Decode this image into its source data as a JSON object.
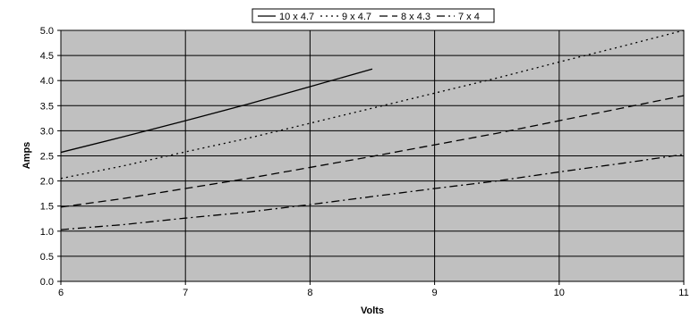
{
  "chart_data": {
    "type": "line",
    "xlabel": "Volts",
    "ylabel": "Amps",
    "xlim": [
      6,
      11
    ],
    "ylim": [
      0,
      5
    ],
    "x_ticks": [
      "6",
      "7",
      "8",
      "9",
      "10",
      "11"
    ],
    "y_ticks": [
      "0.0",
      "0.5",
      "1.0",
      "1.5",
      "2.0",
      "2.5",
      "3.0",
      "3.5",
      "4.0",
      "4.5",
      "5.0"
    ],
    "grid": "vertical and horizontal",
    "legend_position": "top",
    "colors": {
      "plot_background": "#c0c0c0",
      "line": "#000000",
      "grid": "#000000"
    },
    "series": [
      {
        "name": "10 x 4.7",
        "dash": "solid",
        "x": [
          6,
          6.5,
          7,
          7.5,
          8,
          8.5
        ],
        "y": [
          2.57,
          2.88,
          3.2,
          3.53,
          3.88,
          4.23
        ]
      },
      {
        "name": "9 x 4.7",
        "dash": "dotted",
        "x": [
          6,
          6.5,
          7,
          7.5,
          8,
          8.5,
          9,
          9.5,
          10,
          10.5,
          11
        ],
        "y": [
          2.05,
          2.3,
          2.58,
          2.85,
          3.15,
          3.45,
          3.75,
          4.05,
          4.37,
          4.68,
          5.0
        ]
      },
      {
        "name": "8 x 4.3",
        "dash": "dashed",
        "x": [
          6,
          6.5,
          7,
          7.5,
          8,
          8.5,
          9,
          9.5,
          10,
          10.5,
          11
        ],
        "y": [
          1.48,
          1.65,
          1.85,
          2.05,
          2.27,
          2.49,
          2.72,
          2.95,
          3.2,
          3.45,
          3.7
        ]
      },
      {
        "name": "7 x 4",
        "dash": "dash-dot",
        "x": [
          6,
          6.5,
          7,
          7.5,
          8,
          8.5,
          9,
          9.5,
          10,
          10.5,
          11
        ],
        "y": [
          1.03,
          1.13,
          1.26,
          1.38,
          1.53,
          1.69,
          1.85,
          2.0,
          2.18,
          2.35,
          2.53
        ]
      }
    ]
  }
}
